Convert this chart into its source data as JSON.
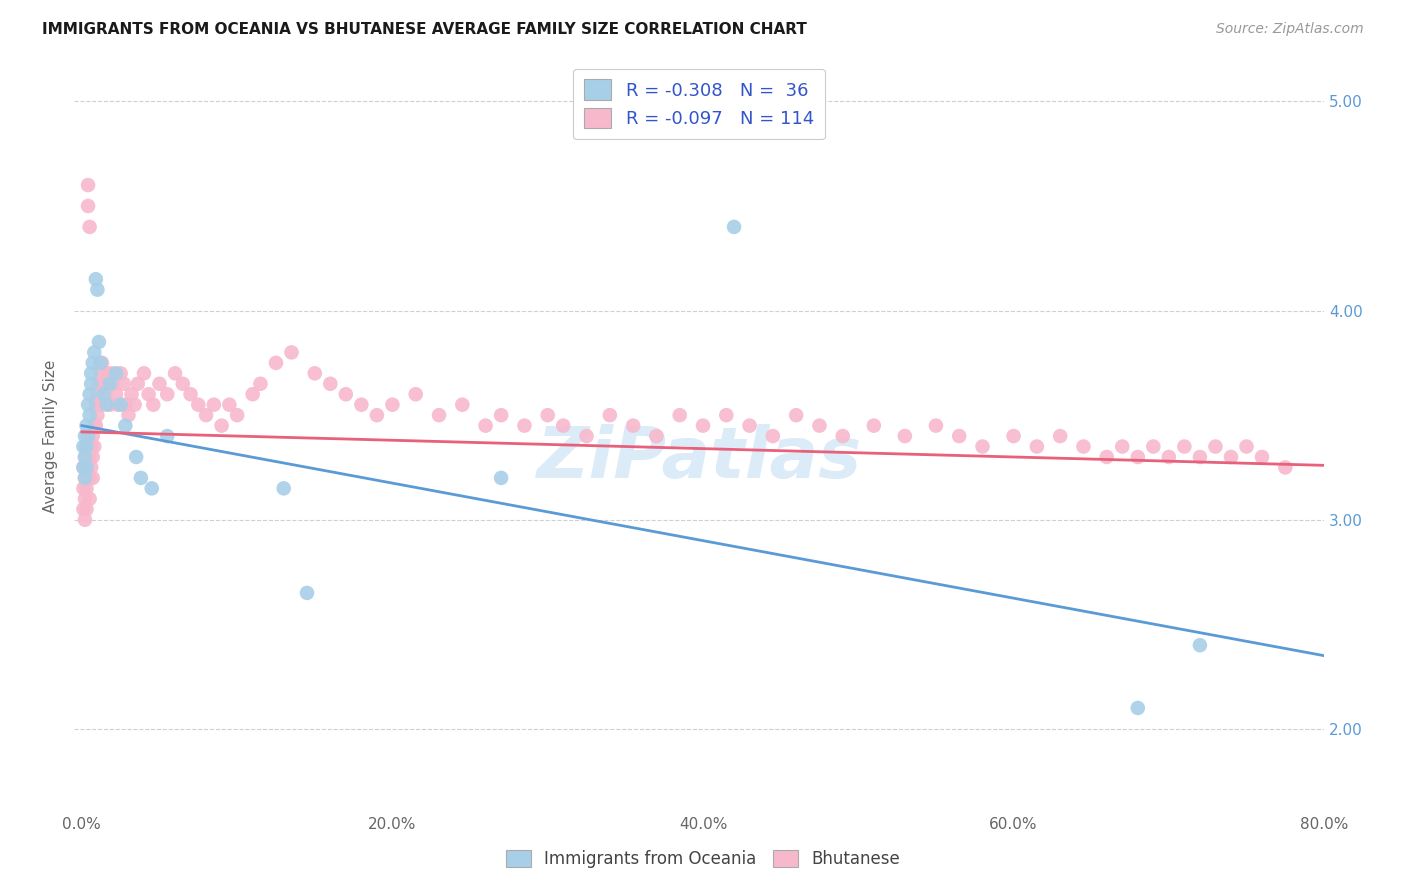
{
  "title": "IMMIGRANTS FROM OCEANIA VS BHUTANESE AVERAGE FAMILY SIZE CORRELATION CHART",
  "source": "Source: ZipAtlas.com",
  "ylabel": "Average Family Size",
  "xlim": [
    -0.005,
    0.8
  ],
  "ylim": [
    1.6,
    5.2
  ],
  "yticks": [
    2.0,
    3.0,
    4.0,
    5.0
  ],
  "xticks": [
    0.0,
    0.2,
    0.4,
    0.6,
    0.8
  ],
  "xticklabels": [
    "0.0%",
    "20.0%",
    "40.0%",
    "60.0%",
    "80.0%"
  ],
  "legend_r_blue": "R = -0.308",
  "legend_n_blue": "N =  36",
  "legend_r_pink": "R = -0.097",
  "legend_n_pink": "N = 114",
  "blue_color": "#a8cfe8",
  "pink_color": "#f7b8cc",
  "blue_line_color": "#5b9bd5",
  "pink_line_color": "#e8607a",
  "watermark": "ZiPatlas",
  "blue_line_x0": 0.0,
  "blue_line_y0": 3.45,
  "blue_line_x1": 0.8,
  "blue_line_y1": 2.35,
  "pink_line_x0": 0.0,
  "pink_line_y0": 3.42,
  "pink_line_x1": 0.8,
  "pink_line_y1": 3.26,
  "blue_x": [
    0.001,
    0.001,
    0.002,
    0.002,
    0.002,
    0.003,
    0.003,
    0.003,
    0.004,
    0.004,
    0.005,
    0.005,
    0.006,
    0.006,
    0.007,
    0.008,
    0.009,
    0.01,
    0.011,
    0.012,
    0.014,
    0.016,
    0.018,
    0.022,
    0.025,
    0.028,
    0.035,
    0.038,
    0.045,
    0.055,
    0.13,
    0.145,
    0.27,
    0.42,
    0.68,
    0.72
  ],
  "blue_y": [
    3.35,
    3.25,
    3.4,
    3.3,
    3.2,
    3.45,
    3.35,
    3.25,
    3.55,
    3.4,
    3.6,
    3.5,
    3.7,
    3.65,
    3.75,
    3.8,
    4.15,
    4.1,
    3.85,
    3.75,
    3.6,
    3.55,
    3.65,
    3.7,
    3.55,
    3.45,
    3.3,
    3.2,
    3.15,
    3.4,
    3.15,
    2.65,
    3.2,
    4.4,
    2.1,
    2.4
  ],
  "pink_x": [
    0.001,
    0.001,
    0.001,
    0.002,
    0.002,
    0.002,
    0.002,
    0.003,
    0.003,
    0.003,
    0.003,
    0.004,
    0.004,
    0.004,
    0.005,
    0.005,
    0.005,
    0.005,
    0.006,
    0.006,
    0.007,
    0.007,
    0.007,
    0.008,
    0.008,
    0.009,
    0.009,
    0.01,
    0.01,
    0.011,
    0.012,
    0.012,
    0.013,
    0.014,
    0.015,
    0.016,
    0.017,
    0.018,
    0.019,
    0.02,
    0.022,
    0.023,
    0.025,
    0.027,
    0.028,
    0.03,
    0.032,
    0.034,
    0.036,
    0.04,
    0.043,
    0.046,
    0.05,
    0.055,
    0.06,
    0.065,
    0.07,
    0.075,
    0.08,
    0.085,
    0.09,
    0.095,
    0.1,
    0.11,
    0.115,
    0.125,
    0.135,
    0.15,
    0.16,
    0.17,
    0.18,
    0.19,
    0.2,
    0.215,
    0.23,
    0.245,
    0.26,
    0.27,
    0.285,
    0.3,
    0.31,
    0.325,
    0.34,
    0.355,
    0.37,
    0.385,
    0.4,
    0.415,
    0.43,
    0.445,
    0.46,
    0.475,
    0.49,
    0.51,
    0.53,
    0.55,
    0.565,
    0.58,
    0.6,
    0.615,
    0.63,
    0.645,
    0.66,
    0.67,
    0.68,
    0.69,
    0.7,
    0.71,
    0.72,
    0.73,
    0.74,
    0.75,
    0.76,
    0.775
  ],
  "pink_y": [
    3.25,
    3.15,
    3.05,
    3.3,
    3.2,
    3.1,
    3.0,
    3.35,
    3.25,
    3.15,
    3.05,
    4.6,
    4.5,
    3.2,
    4.4,
    3.3,
    3.2,
    3.1,
    3.35,
    3.25,
    3.4,
    3.3,
    3.2,
    3.45,
    3.35,
    3.55,
    3.45,
    3.6,
    3.5,
    3.65,
    3.7,
    3.55,
    3.75,
    3.65,
    3.6,
    3.7,
    3.65,
    3.55,
    3.7,
    3.65,
    3.6,
    3.55,
    3.7,
    3.65,
    3.55,
    3.5,
    3.6,
    3.55,
    3.65,
    3.7,
    3.6,
    3.55,
    3.65,
    3.6,
    3.7,
    3.65,
    3.6,
    3.55,
    3.5,
    3.55,
    3.45,
    3.55,
    3.5,
    3.6,
    3.65,
    3.75,
    3.8,
    3.7,
    3.65,
    3.6,
    3.55,
    3.5,
    3.55,
    3.6,
    3.5,
    3.55,
    3.45,
    3.5,
    3.45,
    3.5,
    3.45,
    3.4,
    3.5,
    3.45,
    3.4,
    3.5,
    3.45,
    3.5,
    3.45,
    3.4,
    3.5,
    3.45,
    3.4,
    3.45,
    3.4,
    3.45,
    3.4,
    3.35,
    3.4,
    3.35,
    3.4,
    3.35,
    3.3,
    3.35,
    3.3,
    3.35,
    3.3,
    3.35,
    3.3,
    3.35,
    3.3,
    3.35,
    3.3,
    3.25
  ]
}
